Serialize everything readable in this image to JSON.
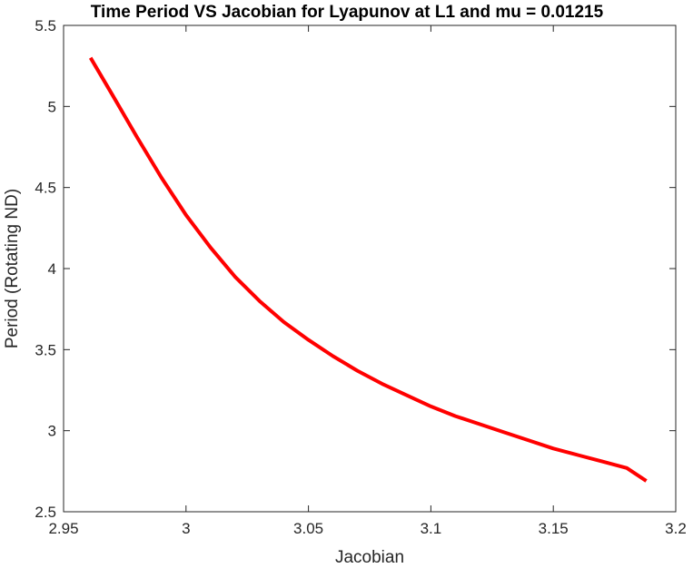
{
  "chart_data": {
    "type": "line",
    "title": "Time Period VS Jacobian for Lyapunov at L1 and mu = 0.01215",
    "xlabel": "Jacobian",
    "ylabel": "Period (Rotating ND)",
    "xlim": [
      2.95,
      3.2
    ],
    "ylim": [
      2.5,
      5.5
    ],
    "xticks": [
      2.95,
      3.0,
      3.05,
      3.1,
      3.15,
      3.2
    ],
    "xtick_labels": [
      "2.95",
      "3",
      "3.05",
      "3.1",
      "3.15",
      "3.2"
    ],
    "yticks": [
      2.5,
      3.0,
      3.5,
      4.0,
      4.5,
      5.0,
      5.5
    ],
    "ytick_labels": [
      "2.5",
      "3",
      "3.5",
      "4",
      "4.5",
      "5",
      "5.5"
    ],
    "grid": false,
    "series": [
      {
        "color": "#ff0000",
        "x": [
          2.961,
          2.97,
          2.98,
          2.99,
          3.0,
          3.01,
          3.02,
          3.03,
          3.04,
          3.05,
          3.06,
          3.07,
          3.08,
          3.09,
          3.1,
          3.11,
          3.12,
          3.13,
          3.14,
          3.15,
          3.16,
          3.17,
          3.18,
          3.188
        ],
        "y": [
          5.3,
          5.07,
          4.81,
          4.56,
          4.33,
          4.13,
          3.95,
          3.8,
          3.67,
          3.56,
          3.46,
          3.37,
          3.29,
          3.22,
          3.15,
          3.09,
          3.04,
          2.99,
          2.94,
          2.89,
          2.85,
          2.81,
          2.77,
          2.69
        ]
      }
    ]
  }
}
